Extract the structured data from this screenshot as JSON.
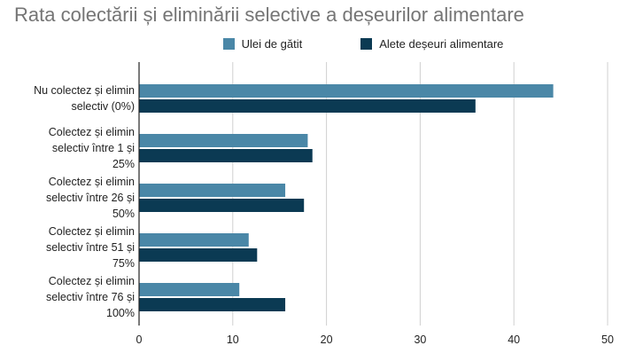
{
  "chart_data": {
    "type": "bar",
    "orientation": "horizontal",
    "title": "Rata colectării și eliminării selective a deșeurilor alimentare",
    "legend_position": "top",
    "categories": [
      [
        "Nu colectez și elimin",
        "selectiv (0%)"
      ],
      [
        "Colectez și elimin",
        "selectiv între 1 și",
        "25%"
      ],
      [
        "Colectez și elimin",
        "selectiv între 26 și",
        "50%"
      ],
      [
        "Colectez și elimin",
        "selectiv între 51 și",
        "75%"
      ],
      [
        "Colectez și elimin",
        "selectiv între 76 și",
        "100%"
      ]
    ],
    "series": [
      {
        "name": "Ulei de gătit",
        "color": "#4a87a7",
        "values": [
          44.2,
          18.0,
          15.6,
          11.7,
          10.7
        ]
      },
      {
        "name": "Alete deșeuri alimentare",
        "color": "#0b3a53",
        "values": [
          35.9,
          18.5,
          17.6,
          12.6,
          15.6
        ]
      }
    ],
    "xlim": [
      0,
      50
    ],
    "xticks": [
      "0",
      "10",
      "20",
      "30",
      "40",
      "50"
    ],
    "grid": true
  }
}
